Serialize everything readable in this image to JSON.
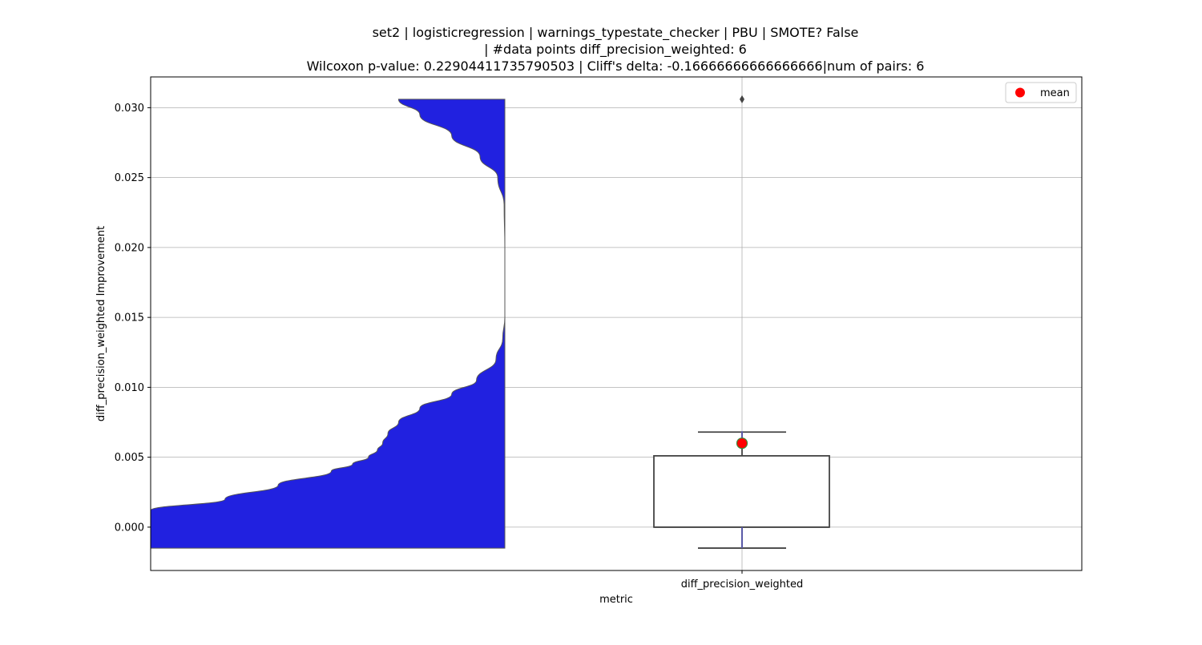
{
  "chart_data": {
    "type": "violin-box",
    "title_lines": [
      "set2 | logisticregression | warnings_typestate_checker | PBU | SMOTE? False",
      "| #data points diff_precision_weighted: 6",
      "Wilcoxon p-value: 0.22904411735790503 | Cliff's delta: -0.16666666666666666|num of pairs: 6"
    ],
    "xlabel": "metric",
    "ylabel": "diff_precision_weighted Improvement",
    "categories": [
      "diff_precision_weighted"
    ],
    "ylim": [
      -0.0031,
      0.0322
    ],
    "yticks": [
      0.0,
      0.005,
      0.01,
      0.015,
      0.02,
      0.025,
      0.03
    ],
    "ytick_labels": [
      "0.000",
      "0.005",
      "0.010",
      "0.015",
      "0.020",
      "0.025",
      "0.030"
    ],
    "grid": true,
    "legend": {
      "placement": "top-right",
      "entries": [
        {
          "label": "mean",
          "color": "#ff0000"
        }
      ]
    },
    "violin": {
      "color": "#2121e0",
      "side": "left",
      "y_min": -0.0015,
      "y_max": 0.0306,
      "density_profile": [
        {
          "y": -0.0015,
          "w": 1.0
        },
        {
          "y": 0.0012,
          "w": 1.0
        },
        {
          "y": 0.002,
          "w": 0.79
        },
        {
          "y": 0.003,
          "w": 0.64
        },
        {
          "y": 0.004,
          "w": 0.49
        },
        {
          "y": 0.0045,
          "w": 0.43
        },
        {
          "y": 0.005,
          "w": 0.385
        },
        {
          "y": 0.0055,
          "w": 0.36
        },
        {
          "y": 0.006,
          "w": 0.345
        },
        {
          "y": 0.0067,
          "w": 0.33
        },
        {
          "y": 0.0075,
          "w": 0.3
        },
        {
          "y": 0.0085,
          "w": 0.24
        },
        {
          "y": 0.0095,
          "w": 0.15
        },
        {
          "y": 0.0105,
          "w": 0.08
        },
        {
          "y": 0.012,
          "w": 0.025
        },
        {
          "y": 0.0135,
          "w": 0.006
        },
        {
          "y": 0.015,
          "w": 0.0
        },
        {
          "y": 0.02,
          "w": 0.0
        },
        {
          "y": 0.023,
          "w": 0.002
        },
        {
          "y": 0.025,
          "w": 0.02
        },
        {
          "y": 0.0265,
          "w": 0.07
        },
        {
          "y": 0.028,
          "w": 0.15
        },
        {
          "y": 0.0295,
          "w": 0.24
        },
        {
          "y": 0.0306,
          "w": 0.3
        }
      ]
    },
    "box": {
      "q1": 0.0,
      "median": 0.0,
      "q3": 0.0051,
      "whisker_low": -0.0015,
      "whisker_high": 0.0068,
      "outliers": [
        0.0306
      ],
      "mean": 0.006
    }
  }
}
